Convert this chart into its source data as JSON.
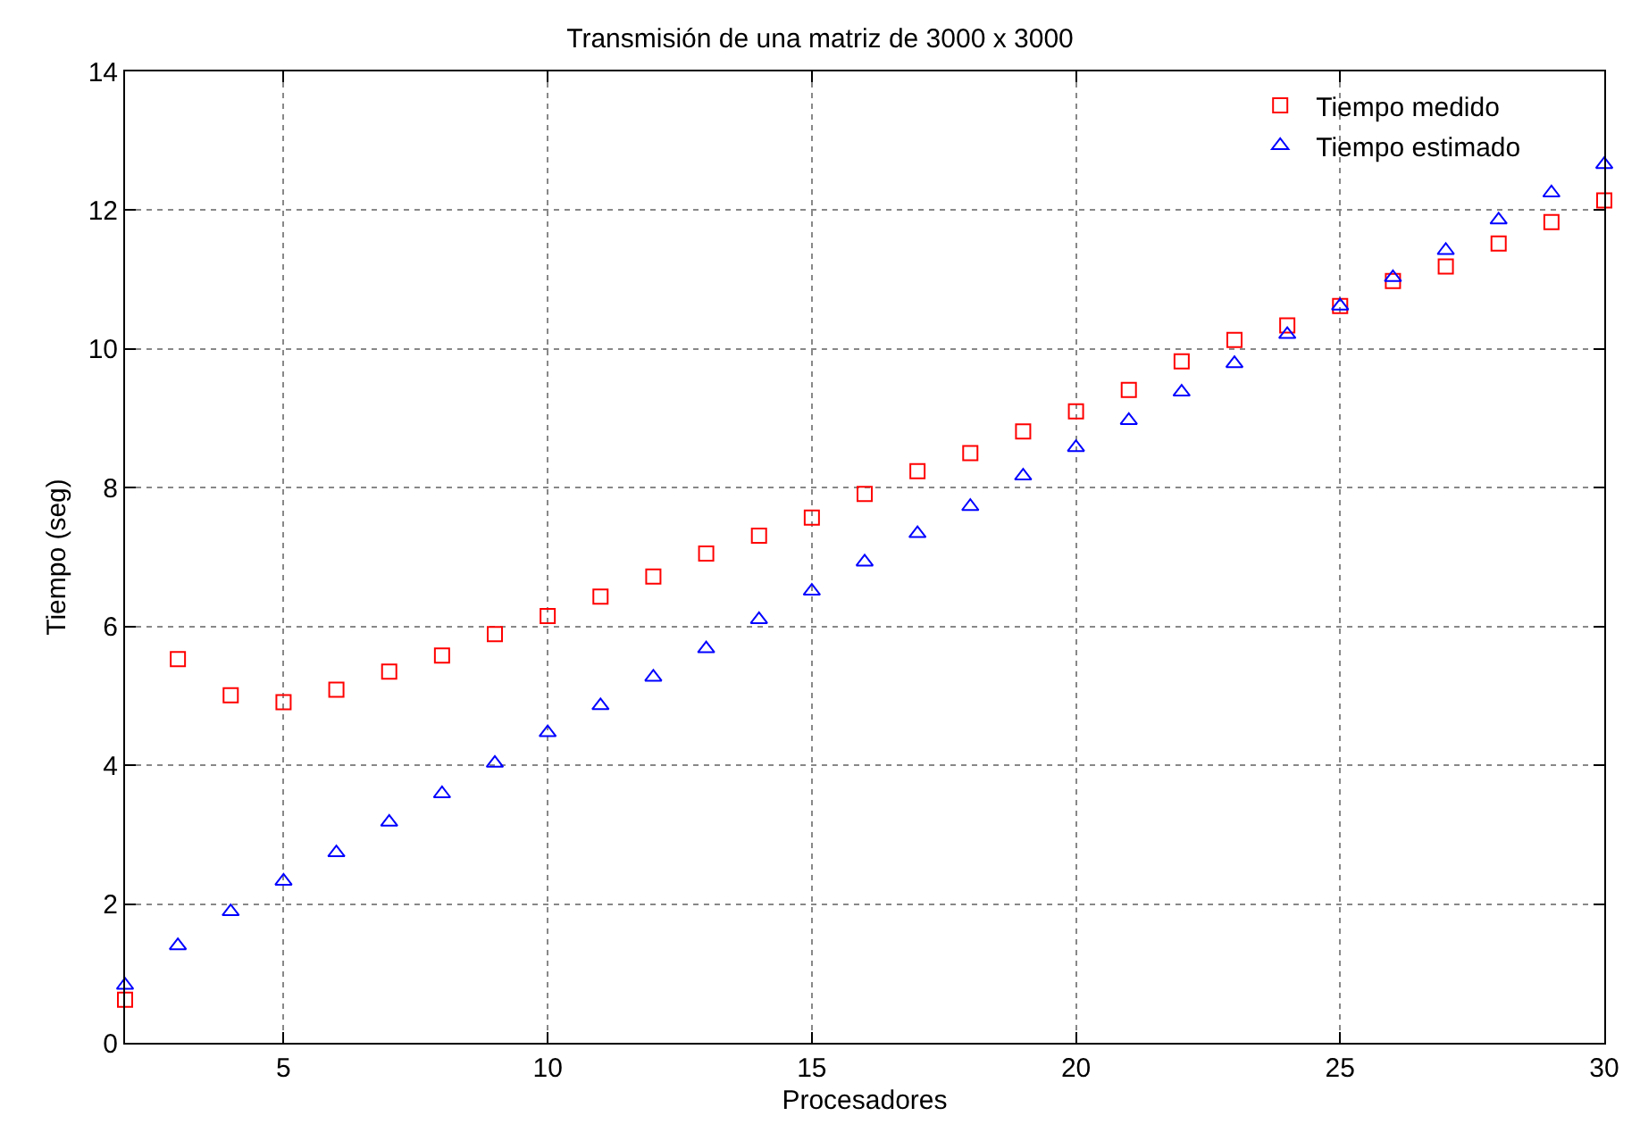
{
  "chart_data": {
    "type": "scatter",
    "title": "Transmisión de una matriz de 3000 x 3000",
    "xlabel": "Procesadores",
    "ylabel": "Tiempo (seg)",
    "x": [
      2,
      3,
      4,
      5,
      6,
      7,
      8,
      9,
      10,
      11,
      12,
      13,
      14,
      15,
      16,
      17,
      18,
      19,
      20,
      21,
      22,
      23,
      24,
      25,
      26,
      27,
      28,
      29,
      30
    ],
    "series": [
      {
        "name": "Tiempo medido",
        "color": "#ff0000",
        "marker": "square",
        "values": [
          0.62,
          5.53,
          5.01,
          4.91,
          5.09,
          5.35,
          5.58,
          5.89,
          6.15,
          6.43,
          6.72,
          7.05,
          7.31,
          7.57,
          7.91,
          8.24,
          8.5,
          8.81,
          9.1,
          9.41,
          9.82,
          10.13,
          10.34,
          10.62,
          10.98,
          11.19,
          11.52,
          11.83,
          12.14
        ]
      },
      {
        "name": "Tiempo estimado",
        "color": "#0000ff",
        "marker": "triangle",
        "values": [
          0.83,
          1.4,
          1.89,
          2.33,
          2.74,
          3.18,
          3.59,
          4.03,
          4.47,
          4.86,
          5.27,
          5.68,
          6.1,
          6.51,
          6.93,
          7.34,
          7.73,
          8.17,
          8.58,
          8.97,
          9.38,
          9.79,
          10.21,
          10.62,
          11.03,
          11.42,
          11.86,
          12.25,
          12.66
        ]
      }
    ],
    "xlim": [
      2,
      30
    ],
    "xticks": [
      5,
      10,
      15,
      20,
      25,
      30
    ],
    "ylim": [
      0,
      14
    ],
    "yticks": [
      0,
      2,
      4,
      6,
      8,
      10,
      12,
      14
    ],
    "grid": true,
    "legend": "top right"
  }
}
